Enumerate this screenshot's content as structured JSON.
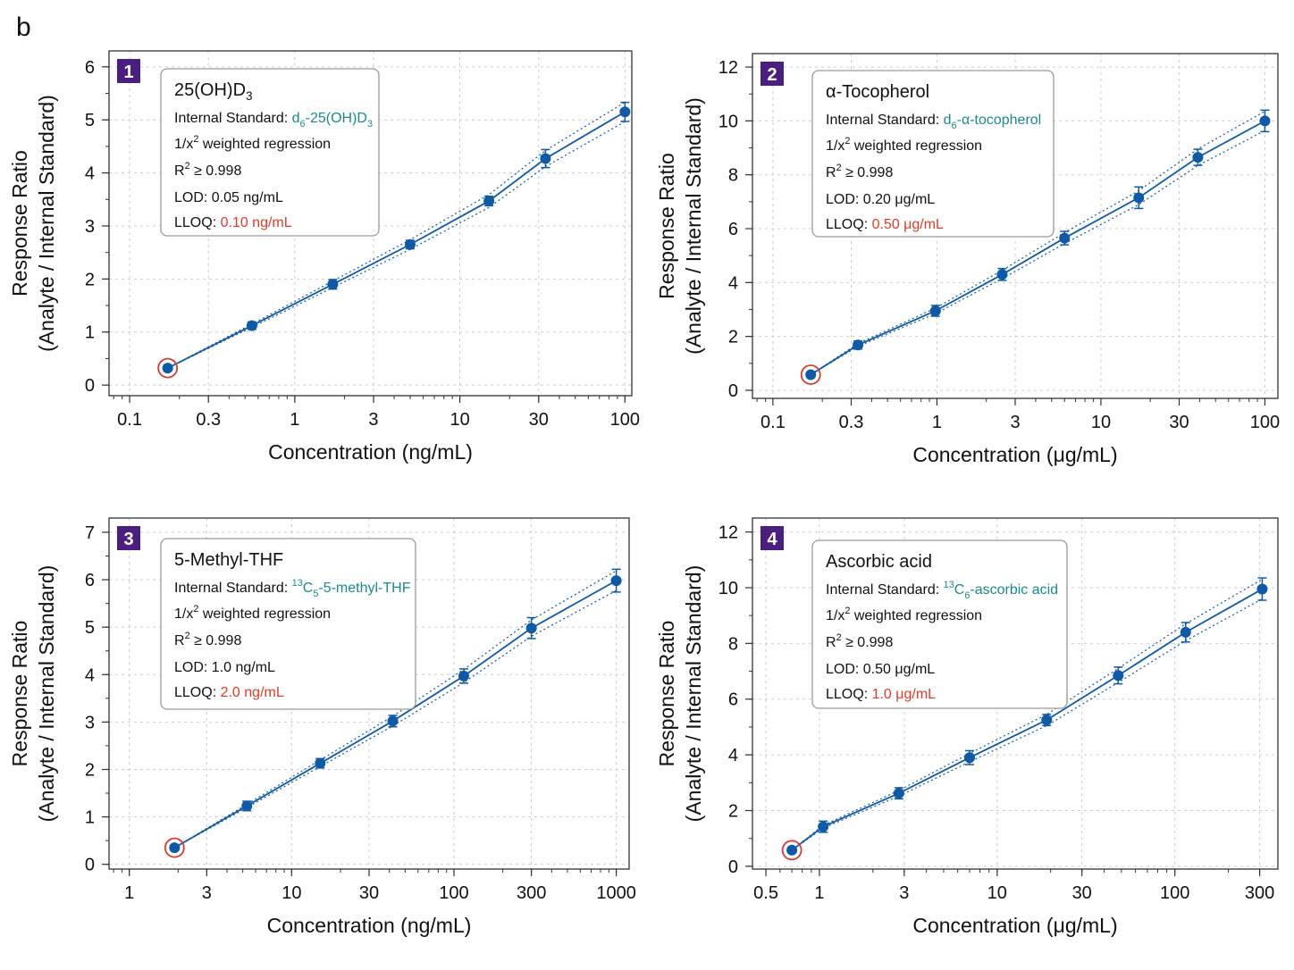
{
  "figure_label": "b",
  "colors": {
    "series": "#0e5aa7",
    "lloq_marker": "#e03a2a",
    "badge": "#4b1f7f",
    "internal_standard": "#1a8a8a",
    "grid": "#cccccc"
  },
  "chart_data": [
    {
      "type": "scatter",
      "panel": "1",
      "title": "25(OH)D3",
      "internal_standard_label": "Internal Standard: ",
      "internal_standard": "d6-25(OH)D3",
      "regression": "1/x2 weighted regression",
      "r2": "R2 ≥ 0.998",
      "lod_label": "LOD: ",
      "lod": "0.05 ng/mL",
      "lloq_label": "LLOQ: ",
      "lloq": "0.10 ng/mL",
      "xlabel": "Concentration (ng/mL)",
      "ylabel": [
        "Response Ratio",
        "(Analyte / Internal Standard)"
      ],
      "x_scale": "log",
      "xlim": [
        0.075,
        110
      ],
      "ylim": [
        -0.2,
        6.3
      ],
      "x_ticks": [
        0.1,
        0.3,
        1,
        3,
        10,
        30,
        100
      ],
      "x_tick_labels": [
        "0.1",
        "0.3",
        "1",
        "3",
        "10",
        "30",
        "100"
      ],
      "y_ticks": [
        0,
        1,
        2,
        3,
        4,
        5,
        6
      ],
      "y_tick_labels": [
        "0",
        "1",
        "2",
        "3",
        "4",
        "5",
        "6"
      ],
      "x": [
        0.17,
        0.55,
        1.7,
        5,
        15,
        33,
        100
      ],
      "y": [
        0.32,
        1.12,
        1.9,
        2.65,
        3.47,
        4.27,
        5.15
      ],
      "y_err": [
        0.05,
        0.07,
        0.09,
        0.08,
        0.09,
        0.17,
        0.18
      ],
      "grid": true
    },
    {
      "type": "scatter",
      "panel": "2",
      "title": "α-Tocopherol",
      "internal_standard_label": "Internal Standard: ",
      "internal_standard": "d6-α-tocopherol",
      "regression": "1/x2 weighted regression",
      "r2": "R2 ≥ 0.998",
      "lod_label": "LOD: ",
      "lod": "0.20 μg/mL",
      "lloq_label": "LLOQ: ",
      "lloq": "0.50 μg/mL",
      "xlabel": "Concentration (μg/mL)",
      "ylabel": [
        "Response Ratio",
        "(Analyte / Internal Standard)"
      ],
      "x_scale": "log",
      "xlim": [
        0.075,
        120
      ],
      "ylim": [
        -0.3,
        12.5
      ],
      "x_ticks": [
        0.1,
        0.3,
        1,
        3,
        10,
        30,
        100
      ],
      "x_tick_labels": [
        "0.1",
        "0.3",
        "1",
        "3",
        "10",
        "30",
        "100"
      ],
      "y_ticks": [
        0,
        2,
        4,
        6,
        8,
        10,
        12
      ],
      "y_tick_labels": [
        "0",
        "2",
        "4",
        "6",
        "8",
        "10",
        "12"
      ],
      "x": [
        0.17,
        0.33,
        0.98,
        2.5,
        6,
        17,
        39,
        100
      ],
      "y": [
        0.58,
        1.68,
        2.95,
        4.3,
        5.65,
        7.15,
        8.65,
        10.0
      ],
      "y_err": [
        0.1,
        0.15,
        0.2,
        0.22,
        0.25,
        0.4,
        0.3,
        0.4
      ],
      "grid": true
    },
    {
      "type": "scatter",
      "panel": "3",
      "title": "5-Methyl-THF",
      "internal_standard_label": "Internal Standard: ",
      "internal_standard": "13C5-5-methyl-THF",
      "regression": "1/x2 weighted regression",
      "r2": "R2 ≥ 0.998",
      "lod_label": "LOD: ",
      "lod": "1.0 ng/mL",
      "lloq_label": "LLOQ: ",
      "lloq": "2.0 ng/mL",
      "xlabel": "Concentration (ng/mL)",
      "ylabel": [
        "Response Ratio",
        "(Analyte / Internal Standard)"
      ],
      "x_scale": "log",
      "xlim": [
        0.75,
        1200
      ],
      "ylim": [
        -0.1,
        7.3
      ],
      "x_ticks": [
        1,
        3,
        10,
        30,
        100,
        300,
        1000
      ],
      "x_tick_labels": [
        "1",
        "3",
        "10",
        "30",
        "100",
        "300",
        "1000"
      ],
      "y_ticks": [
        0,
        1,
        2,
        3,
        4,
        5,
        6,
        7
      ],
      "y_tick_labels": [
        "0",
        "1",
        "2",
        "3",
        "4",
        "5",
        "6",
        "7"
      ],
      "x": [
        1.9,
        5.3,
        15,
        42,
        115,
        300,
        1000
      ],
      "y": [
        0.35,
        1.23,
        2.13,
        3.02,
        3.97,
        4.98,
        5.98
      ],
      "y_err": [
        0.06,
        0.1,
        0.1,
        0.12,
        0.15,
        0.22,
        0.24
      ],
      "grid": true
    },
    {
      "type": "scatter",
      "panel": "4",
      "title": "Ascorbic acid",
      "internal_standard_label": "Internal Standard: ",
      "internal_standard": "13C6-ascorbic acid",
      "regression": "1/x2 weighted regression",
      "r2": "R2 ≥ 0.998",
      "lod_label": "LOD: ",
      "lod": "0.50 μg/mL",
      "lloq_label": "LLOQ: ",
      "lloq": "1.0 μg/mL",
      "xlabel": "Concentration (μg/mL)",
      "ylabel": [
        "Response Ratio",
        "(Analyte / Internal Standard)"
      ],
      "x_scale": "log",
      "xlim": [
        0.42,
        380
      ],
      "ylim": [
        -0.1,
        12.5
      ],
      "x_ticks": [
        0.5,
        1,
        3,
        10,
        30,
        100,
        300
      ],
      "x_tick_labels": [
        "0.5",
        "1",
        "3",
        "10",
        "30",
        "100",
        "300"
      ],
      "y_ticks": [
        0,
        2,
        4,
        6,
        8,
        10,
        12
      ],
      "y_tick_labels": [
        "0",
        "2",
        "4",
        "6",
        "8",
        "10",
        "12"
      ],
      "x": [
        0.7,
        1.05,
        2.8,
        7,
        19,
        48,
        115,
        310
      ],
      "y": [
        0.58,
        1.42,
        2.62,
        3.9,
        5.25,
        6.85,
        8.4,
        9.95
      ],
      "y_err": [
        0.1,
        0.2,
        0.2,
        0.25,
        0.2,
        0.3,
        0.35,
        0.4
      ],
      "grid": true
    }
  ]
}
